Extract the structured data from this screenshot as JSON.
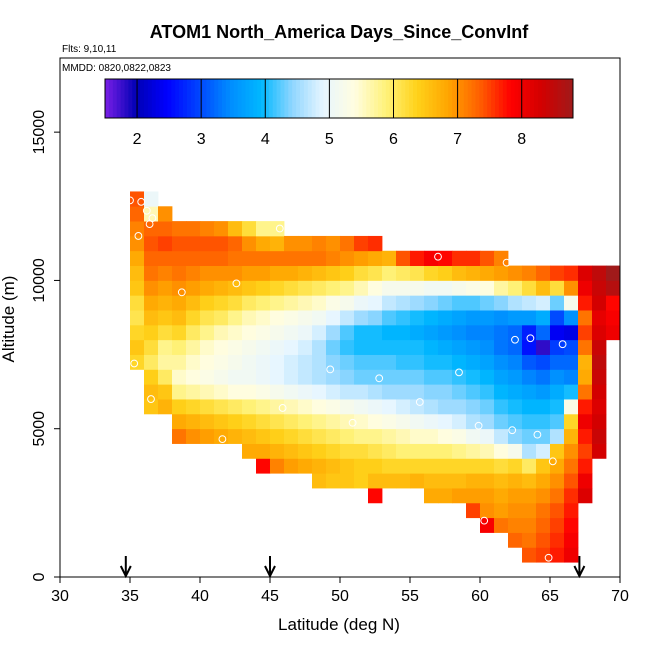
{
  "chart_data": {
    "type": "heatmap",
    "title": "ATOM1 North_America Days_Since_ConvInf",
    "flights_label": "Flts: 9,10,11",
    "dates_label": "MMDD: 0820,0822,0823",
    "xlabel": "Latitude (deg N)",
    "ylabel": "Altitude (m)",
    "xlim": [
      30,
      70
    ],
    "ylim": [
      0,
      17500
    ],
    "x_ticks": [
      30,
      35,
      40,
      45,
      50,
      55,
      60,
      65,
      70
    ],
    "y_ticks": [
      0,
      5000,
      10000,
      15000
    ],
    "colorbar": {
      "ticks": [
        2,
        3,
        4,
        5,
        6,
        7,
        8
      ],
      "range": [
        1.5,
        8.8
      ],
      "colors": [
        "#7a1fe6",
        "#0000b5",
        "#0000ff",
        "#0044ff",
        "#008cff",
        "#00b8ff",
        "#8fd6ff",
        "#e8f6ff",
        "#fffde0",
        "#fff27a",
        "#ffd21a",
        "#ffa500",
        "#ff6000",
        "#ff0000",
        "#d20000",
        "#a01a1a"
      ]
    },
    "grid": {
      "lat_start": 35,
      "lat_step": 1,
      "alt_start": 0,
      "alt_step": 500,
      "columns": [
        {
          "lat": 35,
          "alt_min": 7000,
          "alt_max": 13000,
          "values": [
            6.3,
            6.5,
            6.3,
            6.1,
            6.2,
            6.5,
            6.6,
            6.8,
            7.0,
            7.1,
            7.3,
            7.4
          ]
        },
        {
          "lat": 36,
          "alt_min": 5500,
          "alt_max": 13000,
          "values": [
            6.5,
            6.6,
            6.4,
            6.0,
            6.2,
            6.4,
            6.6,
            6.8,
            7.0,
            7.2,
            7.3,
            7.4,
            7.3,
            5.6,
            5.0
          ]
        },
        {
          "lat": 37,
          "alt_min": 5500,
          "alt_max": 12500,
          "values": [
            6.7,
            6.5,
            6.0,
            5.7,
            5.8,
            6.2,
            6.5,
            6.7,
            6.9,
            7.1,
            7.3,
            7.5,
            7.3,
            7.0
          ]
        },
        {
          "lat": 38,
          "alt_min": 4500,
          "alt_max": 12000,
          "values": [
            7.2,
            6.8,
            6.4,
            5.8,
            5.5,
            5.7,
            5.9,
            6.3,
            6.6,
            6.8,
            7.0,
            7.2,
            7.3,
            7.4,
            7.2
          ]
        },
        {
          "lat": 39,
          "alt_min": 4500,
          "alt_max": 12000,
          "values": [
            7.0,
            6.7,
            6.3,
            5.7,
            5.4,
            5.5,
            5.7,
            6.0,
            6.3,
            6.6,
            6.9,
            7.1,
            7.3,
            7.4,
            7.2
          ]
        },
        {
          "lat": 40,
          "alt_min": 4500,
          "alt_max": 12000,
          "values": [
            6.9,
            6.6,
            6.2,
            5.6,
            5.3,
            5.4,
            5.5,
            5.8,
            6.1,
            6.4,
            6.8,
            7.0,
            7.3,
            7.4,
            7.1
          ]
        },
        {
          "lat": 41,
          "alt_min": 4500,
          "alt_max": 12000,
          "values": [
            6.8,
            6.5,
            6.1,
            5.5,
            5.2,
            5.3,
            5.4,
            5.6,
            6.0,
            6.3,
            6.7,
            7.0,
            7.3,
            7.4,
            7.0
          ]
        },
        {
          "lat": 42,
          "alt_min": 4500,
          "alt_max": 12000,
          "values": [
            6.7,
            6.4,
            6.0,
            5.4,
            5.1,
            5.2,
            5.3,
            5.5,
            5.8,
            6.2,
            6.6,
            7.0,
            7.2,
            7.3,
            6.6
          ]
        },
        {
          "lat": 43,
          "alt_min": 4000,
          "alt_max": 12000,
          "values": [
            6.8,
            6.6,
            6.3,
            5.9,
            5.4,
            5.1,
            5.1,
            5.2,
            5.4,
            5.6,
            6.0,
            6.5,
            6.9,
            7.2,
            7.0,
            6.2
          ]
        },
        {
          "lat": 44,
          "alt_min": 3500,
          "alt_max": 12000,
          "values": [
            7.8,
            6.8,
            6.5,
            6.2,
            5.8,
            5.3,
            5.0,
            5.0,
            5.1,
            5.3,
            5.5,
            5.9,
            6.4,
            6.9,
            7.2,
            6.8,
            5.8
          ]
        },
        {
          "lat": 45,
          "alt_min": 3500,
          "alt_max": 12000,
          "values": [
            7.1,
            6.7,
            6.4,
            6.1,
            5.7,
            5.2,
            4.9,
            4.9,
            5.0,
            5.2,
            5.4,
            5.8,
            6.3,
            6.8,
            7.2,
            6.7,
            5.8
          ]
        },
        {
          "lat": 46,
          "alt_min": 3500,
          "alt_max": 11500,
          "values": [
            6.9,
            6.6,
            6.3,
            6.0,
            5.6,
            5.1,
            4.8,
            4.8,
            4.9,
            5.1,
            5.3,
            5.7,
            6.2,
            6.8,
            7.2,
            7.0
          ]
        },
        {
          "lat": 47,
          "alt_min": 3500,
          "alt_max": 11500,
          "values": [
            6.8,
            6.5,
            6.2,
            5.9,
            5.5,
            5.0,
            4.7,
            4.7,
            4.8,
            5.0,
            5.2,
            5.6,
            6.1,
            6.7,
            7.2,
            7.0
          ]
        },
        {
          "lat": 48,
          "alt_min": 3000,
          "alt_max": 11500,
          "values": [
            6.6,
            6.7,
            6.4,
            6.1,
            5.8,
            5.4,
            4.9,
            4.6,
            4.6,
            4.6,
            4.8,
            5.1,
            5.5,
            6.0,
            6.6,
            7.2,
            7.1
          ]
        },
        {
          "lat": 49,
          "alt_min": 3000,
          "alt_max": 11500,
          "values": [
            6.5,
            6.6,
            6.3,
            6.0,
            5.7,
            5.3,
            4.8,
            4.5,
            4.4,
            4.3,
            4.5,
            4.9,
            5.3,
            5.9,
            6.5,
            7.1,
            7.0
          ]
        },
        {
          "lat": 50,
          "alt_min": 3000,
          "alt_max": 11500,
          "values": [
            6.5,
            6.5,
            6.2,
            5.9,
            5.6,
            5.2,
            4.7,
            4.4,
            4.3,
            4.1,
            4.2,
            4.7,
            5.2,
            5.8,
            6.4,
            7.0,
            7.2
          ]
        },
        {
          "lat": 51,
          "alt_min": 3000,
          "alt_max": 11500,
          "values": [
            6.4,
            6.4,
            6.2,
            5.8,
            5.5,
            5.1,
            4.7,
            4.3,
            4.2,
            4.0,
            4.0,
            4.5,
            5.0,
            5.6,
            6.2,
            6.9,
            7.5
          ]
        },
        {
          "lat": 52,
          "alt_min": 2500,
          "alt_max": 11500,
          "values": [
            7.8,
            6.6,
            6.4,
            6.1,
            5.8,
            5.4,
            5.0,
            4.6,
            4.3,
            4.2,
            4.0,
            4.0,
            4.4,
            4.9,
            5.4,
            6.1,
            6.8,
            7.6
          ]
        },
        {
          "lat": 53,
          "alt_min": 3000,
          "alt_max": 11000,
          "values": [
            6.6,
            6.3,
            6.0,
            5.7,
            5.3,
            4.9,
            4.5,
            4.3,
            4.2,
            4.0,
            3.9,
            4.2,
            4.7,
            5.2,
            5.9,
            6.7
          ]
        },
        {
          "lat": 54,
          "alt_min": 3000,
          "alt_max": 11000,
          "values": [
            6.6,
            6.3,
            5.9,
            5.6,
            5.2,
            4.8,
            4.5,
            4.3,
            4.1,
            4.0,
            3.9,
            4.1,
            4.6,
            5.2,
            6.0,
            7.4
          ]
        },
        {
          "lat": 55,
          "alt_min": 3000,
          "alt_max": 11000,
          "values": [
            6.7,
            6.3,
            5.9,
            5.5,
            5.1,
            4.7,
            4.5,
            4.3,
            4.1,
            4.0,
            3.8,
            4.0,
            4.5,
            5.2,
            6.1,
            7.7
          ]
        },
        {
          "lat": 56,
          "alt_min": 2500,
          "alt_max": 11000,
          "values": [
            6.8,
            6.6,
            6.3,
            5.9,
            5.5,
            5.0,
            4.6,
            4.4,
            4.2,
            4.0,
            3.9,
            3.7,
            3.9,
            4.4,
            5.1,
            6.3,
            7.9
          ]
        },
        {
          "lat": 57,
          "alt_min": 2500,
          "alt_max": 11000,
          "values": [
            6.8,
            6.6,
            6.3,
            5.9,
            5.4,
            4.9,
            4.5,
            4.4,
            4.2,
            4.0,
            3.8,
            3.6,
            3.8,
            4.3,
            5.1,
            6.4,
            7.8
          ]
        },
        {
          "lat": 58,
          "alt_min": 2500,
          "alt_max": 11000,
          "values": [
            6.9,
            6.6,
            6.3,
            5.8,
            5.3,
            4.8,
            4.5,
            4.3,
            4.1,
            3.9,
            3.7,
            3.5,
            3.7,
            4.2,
            5.2,
            6.6,
            7.6
          ]
        },
        {
          "lat": 59,
          "alt_min": 2000,
          "alt_max": 11000,
          "values": [
            7.5,
            6.9,
            6.7,
            6.3,
            5.7,
            5.1,
            4.6,
            4.4,
            4.2,
            4.0,
            3.8,
            3.6,
            3.4,
            3.6,
            4.2,
            5.3,
            6.7,
            7.6
          ]
        },
        {
          "lat": 60,
          "alt_min": 1500,
          "alt_max": 11000,
          "values": [
            7.9,
            7.0,
            6.9,
            6.7,
            6.3,
            5.6,
            5.0,
            4.5,
            4.3,
            4.1,
            3.9,
            3.7,
            3.5,
            3.4,
            3.6,
            4.3,
            5.4,
            6.8,
            7.4
          ]
        },
        {
          "lat": 61,
          "alt_min": 1500,
          "alt_max": 11000,
          "values": [
            7.2,
            6.9,
            6.8,
            6.6,
            6.2,
            5.4,
            4.7,
            4.3,
            4.1,
            3.9,
            3.7,
            3.5,
            3.3,
            3.3,
            3.5,
            4.4,
            5.7,
            6.9,
            7.1
          ]
        },
        {
          "lat": 62,
          "alt_min": 1000,
          "alt_max": 10500,
          "values": [
            7.3,
            7.1,
            7.0,
            6.9,
            6.7,
            6.3,
            5.2,
            4.4,
            4.2,
            4.0,
            3.8,
            3.6,
            3.4,
            3.2,
            3.2,
            3.6,
            4.6,
            5.9,
            7.0
          ]
        },
        {
          "lat": 63,
          "alt_min": 500,
          "alt_max": 10500,
          "values": [
            7.4,
            7.2,
            7.1,
            7.0,
            6.9,
            6.6,
            6.0,
            4.6,
            4.3,
            4.1,
            3.9,
            3.7,
            3.4,
            3.1,
            2.6,
            2.7,
            3.6,
            4.7,
            6.2,
            7.1
          ]
        },
        {
          "lat": 64,
          "alt_min": 500,
          "alt_max": 10500,
          "values": [
            7.5,
            7.4,
            7.3,
            7.2,
            7.0,
            6.8,
            6.5,
            4.8,
            4.3,
            4.1,
            3.9,
            3.6,
            3.3,
            3.0,
            1.8,
            3.2,
            3.8,
            4.8,
            6.6,
            7.3
          ]
        },
        {
          "lat": 65,
          "alt_min": 500,
          "alt_max": 10500,
          "values": [
            7.7,
            7.6,
            7.5,
            7.4,
            7.2,
            7.0,
            6.8,
            6.5,
            4.6,
            4.2,
            4.0,
            3.8,
            3.5,
            3.2,
            2.9,
            2.4,
            3.0,
            4.3,
            6.2,
            7.5
          ]
        },
        {
          "lat": 66,
          "alt_min": 500,
          "alt_max": 10500,
          "values": [
            8.0,
            7.9,
            7.8,
            7.7,
            7.6,
            7.4,
            7.2,
            7.0,
            6.7,
            6.3,
            5.3,
            4.0,
            3.4,
            3.2,
            3.0,
            2.3,
            3.5,
            5.2,
            7.0,
            7.6
          ]
        },
        {
          "lat": 67,
          "alt_min": 2500,
          "alt_max": 10500,
          "values": [
            8.2,
            8.0,
            7.7,
            7.5,
            7.7,
            8.0,
            7.7,
            7.2,
            6.8,
            6.7,
            7.2,
            7.5,
            7.2,
            7.7,
            8.0,
            8.2
          ]
        },
        {
          "lat": 68,
          "alt_min": 4000,
          "alt_max": 10500,
          "values": [
            8.3,
            8.4,
            8.3,
            8.2,
            8.3,
            8.4,
            8.5,
            8.4,
            8.2,
            8.1,
            8.3,
            8.4,
            8.5
          ]
        },
        {
          "lat": 69,
          "alt_min": 8000,
          "alt_max": 10500,
          "values": [
            8.0,
            7.9,
            7.8,
            8.6,
            8.8
          ]
        }
      ]
    },
    "sample_points": [
      [
        35.0,
        12700
      ],
      [
        35.8,
        12650
      ],
      [
        36.2,
        12350
      ],
      [
        36.6,
        12100
      ],
      [
        35.6,
        11500
      ],
      [
        36.4,
        11900
      ],
      [
        45.7,
        11750
      ],
      [
        42.6,
        9900
      ],
      [
        38.7,
        9600
      ],
      [
        35.3,
        7200
      ],
      [
        36.5,
        6000
      ],
      [
        37.6,
        4500
      ],
      [
        41.6,
        4650
      ],
      [
        45.9,
        5700
      ],
      [
        49.3,
        7000
      ],
      [
        52.8,
        6700
      ],
      [
        50.9,
        5200
      ],
      [
        55.7,
        5900
      ],
      [
        58.5,
        6900
      ],
      [
        59.9,
        5100
      ],
      [
        62.3,
        4950
      ],
      [
        63.6,
        8050
      ],
      [
        62.5,
        8000
      ],
      [
        65.9,
        7850
      ],
      [
        64.1,
        4800
      ],
      [
        65.2,
        3900
      ],
      [
        64.9,
        650
      ],
      [
        60.3,
        1900
      ],
      [
        57.0,
        10800
      ],
      [
        61.9,
        10600
      ],
      [
        69.7,
        10800
      ]
    ],
    "flight_arrows": [
      34.7,
      45.0,
      67.1
    ]
  }
}
